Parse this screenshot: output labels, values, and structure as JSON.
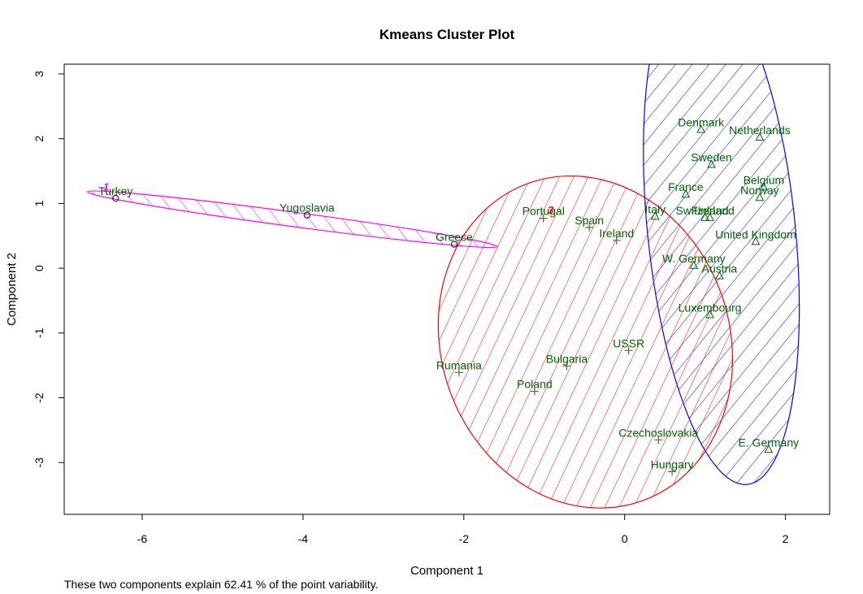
{
  "chart_data": {
    "type": "scatter",
    "title": "Kmeans Cluster Plot",
    "xlabel": "Component 1",
    "ylabel": "Component 2",
    "xlim": [
      -6.97,
      2.55
    ],
    "ylim": [
      -3.8,
      3.15
    ],
    "x_ticks": [
      -6,
      -4,
      -2,
      0,
      2
    ],
    "y_ticks": [
      -3,
      -2,
      -1,
      0,
      1,
      2,
      3
    ],
    "grid": false,
    "label_color": "#006400",
    "clusters": [
      {
        "id": "1",
        "color": "#ff00ff",
        "marker": "circle",
        "points": [
          {
            "label": "Turkey",
            "x": -6.33,
            "y": 1.08
          },
          {
            "label": "Yugoslavia",
            "x": -3.95,
            "y": 0.82
          },
          {
            "label": "Greece",
            "x": -2.12,
            "y": 0.37
          }
        ]
      },
      {
        "id": "2",
        "color": "#0000ff",
        "marker": "triangle",
        "points": [
          {
            "label": "Denmark",
            "x": 0.95,
            "y": 2.14
          },
          {
            "label": "Netherlands",
            "x": 1.68,
            "y": 2.02
          },
          {
            "label": "Sweden",
            "x": 1.08,
            "y": 1.6
          },
          {
            "label": "Belgium",
            "x": 1.73,
            "y": 1.25
          },
          {
            "label": "Norway",
            "x": 1.68,
            "y": 1.09
          },
          {
            "label": "France",
            "x": 0.76,
            "y": 1.14
          },
          {
            "label": "Italy",
            "x": 0.38,
            "y": 0.8
          },
          {
            "label": "Switzerland",
            "x": 1.0,
            "y": 0.78
          },
          {
            "label": "Finland",
            "x": 1.06,
            "y": 0.78
          },
          {
            "label": "United Kingdom",
            "x": 1.63,
            "y": 0.41
          },
          {
            "label": "W. Germany",
            "x": 0.86,
            "y": 0.04
          },
          {
            "label": "Austria",
            "x": 1.18,
            "y": -0.12
          },
          {
            "label": "Luxembourg",
            "x": 1.06,
            "y": -0.72
          },
          {
            "label": "E. Germany",
            "x": 1.79,
            "y": -2.8
          }
        ]
      },
      {
        "id": "3",
        "color": "#ff0000",
        "marker": "plus",
        "points": [
          {
            "label": "Portugal",
            "x": -1.01,
            "y": 0.77
          },
          {
            "label": "Spain",
            "x": -0.44,
            "y": 0.63
          },
          {
            "label": "Ireland",
            "x": -0.1,
            "y": 0.43
          },
          {
            "label": "USSR",
            "x": 0.05,
            "y": -1.27
          },
          {
            "label": "Bulgaria",
            "x": -0.72,
            "y": -1.51
          },
          {
            "label": "Rumania",
            "x": -2.06,
            "y": -1.61
          },
          {
            "label": "Poland",
            "x": -1.12,
            "y": -1.9
          },
          {
            "label": "Czechoslovakia",
            "x": 0.42,
            "y": -2.65
          },
          {
            "label": "Hungary",
            "x": 0.59,
            "y": -3.14
          }
        ]
      }
    ],
    "footnote": "These two components explain 62.41 % of the point variability."
  }
}
